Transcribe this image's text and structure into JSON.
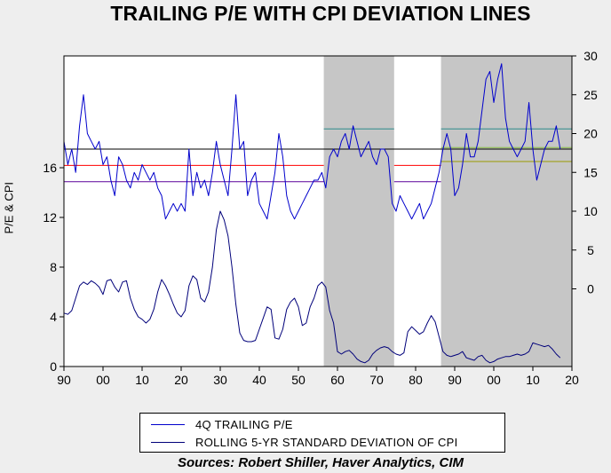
{
  "chart_data": {
    "type": "line",
    "title": "TRAILING P/E WITH CPI DEVIATION LINES",
    "ylabel": "P/E & CPI",
    "source": "Sources:  Robert Shiller, Haver Analytics, CIM",
    "x_range": [
      1890,
      2020
    ],
    "x_ticks": [
      "90",
      "00",
      "10",
      "20",
      "30",
      "40",
      "50",
      "60",
      "70",
      "80",
      "90",
      "00",
      "10",
      "20"
    ],
    "left_axis": {
      "range": [
        0,
        25
      ],
      "ticks": [
        0,
        4,
        8,
        12,
        16
      ]
    },
    "right_axis": {
      "range": [
        -10,
        30
      ],
      "ticks": [
        0,
        5,
        10,
        15,
        20,
        25,
        30
      ]
    },
    "shaded_periods": [
      [
        1956.5,
        1974.5
      ],
      [
        1986.5,
        2020
      ]
    ],
    "horizontal_lines": [
      {
        "color": "#000000",
        "y": 18.0,
        "x_range": [
          1890,
          2020
        ]
      },
      {
        "color": "#ff0000",
        "y": 15.9,
        "x_range": [
          1890,
          1956.5
        ]
      },
      {
        "color": "#ff0000",
        "y": 15.9,
        "x_range": [
          1974.5,
          1986.5
        ]
      },
      {
        "color": "#5a009a",
        "y": 13.8,
        "x_range": [
          1890,
          1956.5
        ]
      },
      {
        "color": "#5a009a",
        "y": 13.8,
        "x_range": [
          1974.5,
          1986.5
        ]
      },
      {
        "color": "#2a8a8a",
        "y": 20.6,
        "x_range": [
          1956.5,
          1974.5
        ]
      },
      {
        "color": "#2a8a8a",
        "y": 20.6,
        "x_range": [
          1986.5,
          2020
        ]
      },
      {
        "color": "#88bb44",
        "y": 18.2,
        "x_range": [
          1986.5,
          2020
        ]
      },
      {
        "color": "#999900",
        "y": 16.4,
        "x_range": [
          1986.5,
          2020
        ]
      }
    ],
    "series": [
      {
        "name": "4Q TRAILING P/E",
        "axis": "right",
        "color": "#0000cc",
        "x": [
          1890,
          1891,
          1892,
          1893,
          1894,
          1895,
          1896,
          1897,
          1898,
          1899,
          1900,
          1901,
          1902,
          1903,
          1904,
          1905,
          1906,
          1907,
          1908,
          1909,
          1910,
          1911,
          1912,
          1913,
          1914,
          1915,
          1916,
          1917,
          1918,
          1919,
          1920,
          1921,
          1922,
          1923,
          1924,
          1925,
          1926,
          1927,
          1928,
          1929,
          1930,
          1931,
          1932,
          1933,
          1934,
          1935,
          1936,
          1937,
          1938,
          1939,
          1940,
          1941,
          1942,
          1943,
          1944,
          1945,
          1946,
          1947,
          1948,
          1949,
          1950,
          1951,
          1952,
          1953,
          1954,
          1955,
          1956,
          1957,
          1958,
          1959,
          1960,
          1961,
          1962,
          1963,
          1964,
          1965,
          1966,
          1967,
          1968,
          1969,
          1970,
          1971,
          1972,
          1973,
          1974,
          1975,
          1976,
          1977,
          1978,
          1979,
          1980,
          1981,
          1982,
          1983,
          1984,
          1985,
          1986,
          1987,
          1988,
          1989,
          1990,
          1991,
          1992,
          1993,
          1994,
          1995,
          1996,
          1997,
          1998,
          1999,
          2000,
          2001,
          2002,
          2003,
          2004,
          2005,
          2006,
          2007,
          2008,
          2009,
          2010,
          2011,
          2012,
          2013,
          2014,
          2015,
          2016,
          2017
        ],
        "values": [
          19,
          16,
          18,
          15,
          21,
          25,
          20,
          19,
          18,
          19,
          16,
          17,
          14,
          12,
          17,
          16,
          14,
          13,
          15,
          14,
          16,
          15,
          14,
          15,
          13,
          12,
          9,
          10,
          11,
          10,
          11,
          10,
          18,
          12,
          15,
          13,
          14,
          12,
          15,
          19,
          16,
          14,
          12,
          18,
          25,
          18,
          19,
          12,
          14,
          15,
          11,
          10,
          9,
          12,
          15,
          20,
          17,
          12,
          10,
          9,
          10,
          11,
          12,
          13,
          14,
          14,
          15,
          13,
          17,
          18,
          17,
          19,
          20,
          18,
          21,
          19,
          17,
          18,
          19,
          17,
          16,
          18,
          18,
          17,
          11,
          10,
          12,
          11,
          10,
          9,
          10,
          11,
          9,
          10,
          11,
          13,
          15,
          18,
          20,
          18,
          12,
          13,
          16,
          20,
          17,
          17,
          19,
          23,
          27,
          28,
          24,
          27,
          29,
          22,
          19,
          18,
          17,
          18,
          19,
          24,
          18,
          14,
          16,
          18,
          19,
          19,
          21,
          18
        ]
      },
      {
        "name": "ROLLING 5-YR STANDARD DEVIATION OF CPI",
        "axis": "left",
        "color": "#00007a",
        "x": [
          1890,
          1891,
          1892,
          1893,
          1894,
          1895,
          1896,
          1897,
          1898,
          1899,
          1900,
          1901,
          1902,
          1903,
          1904,
          1905,
          1906,
          1907,
          1908,
          1909,
          1910,
          1911,
          1912,
          1913,
          1914,
          1915,
          1916,
          1917,
          1918,
          1919,
          1920,
          1921,
          1922,
          1923,
          1924,
          1925,
          1926,
          1927,
          1928,
          1929,
          1930,
          1931,
          1932,
          1933,
          1934,
          1935,
          1936,
          1937,
          1938,
          1939,
          1940,
          1941,
          1942,
          1943,
          1944,
          1945,
          1946,
          1947,
          1948,
          1949,
          1950,
          1951,
          1952,
          1953,
          1954,
          1955,
          1956,
          1957,
          1958,
          1959,
          1960,
          1961,
          1962,
          1963,
          1964,
          1965,
          1966,
          1967,
          1968,
          1969,
          1970,
          1971,
          1972,
          1973,
          1974,
          1975,
          1976,
          1977,
          1978,
          1979,
          1980,
          1981,
          1982,
          1983,
          1984,
          1985,
          1986,
          1987,
          1988,
          1989,
          1990,
          1991,
          1992,
          1993,
          1994,
          1995,
          1996,
          1997,
          1998,
          1999,
          2000,
          2001,
          2002,
          2003,
          2004,
          2005,
          2006,
          2007,
          2008,
          2009,
          2010,
          2011,
          2012,
          2013,
          2014,
          2015,
          2016,
          2017
        ],
        "values": [
          4.3,
          4.2,
          4.5,
          5.5,
          6.5,
          6.8,
          6.6,
          6.9,
          6.7,
          6.4,
          5.8,
          6.9,
          7.0,
          6.4,
          6.0,
          6.8,
          6.9,
          5.5,
          4.6,
          4.0,
          3.8,
          3.5,
          3.8,
          4.6,
          6.0,
          7.0,
          6.5,
          5.8,
          5.0,
          4.3,
          4.0,
          4.5,
          6.5,
          7.3,
          7.0,
          5.5,
          5.2,
          6.0,
          8.0,
          11.0,
          12.5,
          11.8,
          10.5,
          8.0,
          5.0,
          2.7,
          2.1,
          2.0,
          2.0,
          2.1,
          3.0,
          3.9,
          4.8,
          4.6,
          2.3,
          2.2,
          3.0,
          4.6,
          5.2,
          5.5,
          4.8,
          3.3,
          3.5,
          4.8,
          5.5,
          6.5,
          6.8,
          6.4,
          4.5,
          3.5,
          1.2,
          1.0,
          1.2,
          1.3,
          1.0,
          0.6,
          0.4,
          0.3,
          0.5,
          1.0,
          1.3,
          1.5,
          1.6,
          1.5,
          1.2,
          1.0,
          0.9,
          1.1,
          2.8,
          3.2,
          2.9,
          2.6,
          2.8,
          3.5,
          4.1,
          3.6,
          2.4,
          1.2,
          0.9,
          0.8,
          0.9,
          1.0,
          1.2,
          0.7,
          0.6,
          0.5,
          0.8,
          0.9,
          0.5,
          0.3,
          0.4,
          0.6,
          0.7,
          0.8,
          0.8,
          0.9,
          1.0,
          0.9,
          1.0,
          1.2,
          1.9,
          1.8,
          1.7,
          1.6,
          1.7,
          1.4,
          1.0,
          0.7
        ]
      }
    ]
  }
}
